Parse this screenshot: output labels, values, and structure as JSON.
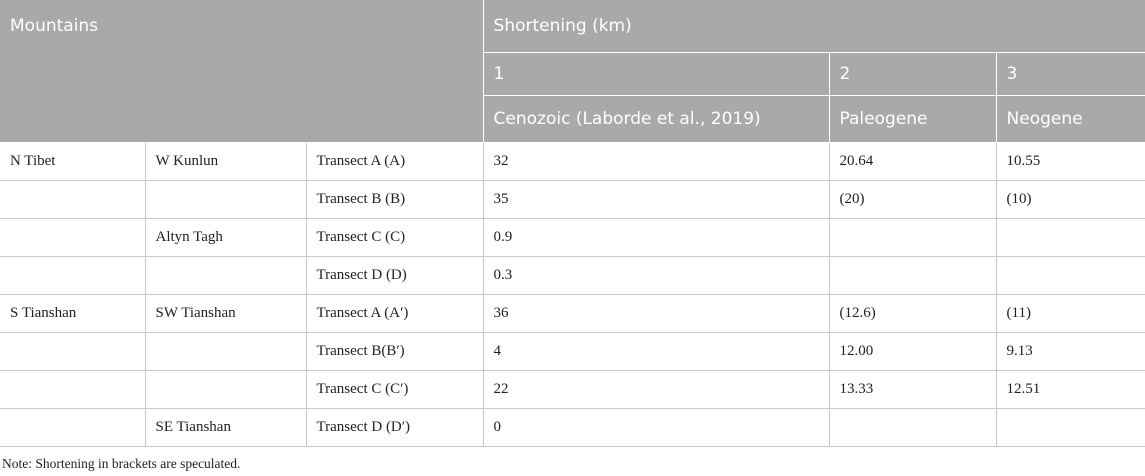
{
  "header": {
    "mountains": "Mountains",
    "shortening": "Shortening (km)",
    "col_numbers": [
      "1",
      "2",
      "3"
    ],
    "col_names": [
      "Cenozoic (Laborde et al., 2019)",
      "Paleogene",
      "Neogene"
    ]
  },
  "rows": [
    {
      "region": "N Tibet",
      "range": "W Kunlun",
      "transect": "Transect A (A)",
      "cenozoic": "32",
      "paleogene": "20.64",
      "neogene": "10.55"
    },
    {
      "region": "",
      "range": "",
      "transect": "Transect B (B)",
      "cenozoic": "35",
      "paleogene": "(20)",
      "neogene": "(10)"
    },
    {
      "region": "",
      "range": "Altyn Tagh",
      "transect": "Transect C (C)",
      "cenozoic": "0.9",
      "paleogene": "",
      "neogene": ""
    },
    {
      "region": "",
      "range": "",
      "transect": "Transect D (D)",
      "cenozoic": "0.3",
      "paleogene": "",
      "neogene": ""
    },
    {
      "region": "S Tianshan",
      "range": "SW Tianshan",
      "transect": "Transect A (A′)",
      "cenozoic": "36",
      "paleogene": "(12.6)",
      "neogene": "(11)"
    },
    {
      "region": "",
      "range": "",
      "transect": "Transect B(B′)",
      "cenozoic": "4",
      "paleogene": "12.00",
      "neogene": "9.13"
    },
    {
      "region": "",
      "range": "",
      "transect": "Transect C (C′)",
      "cenozoic": "22",
      "paleogene": "13.33",
      "neogene": "12.51"
    },
    {
      "region": "",
      "range": "SE Tianshan",
      "transect": "Transect D (D′)",
      "cenozoic": "0",
      "paleogene": "",
      "neogene": ""
    }
  ],
  "note": "Note: Shortening in brackets are speculated."
}
